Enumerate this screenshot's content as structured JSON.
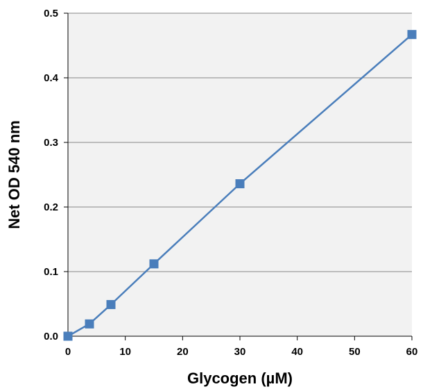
{
  "chart_data": {
    "type": "line",
    "title": "",
    "xlabel": "Glycogen (µM)",
    "ylabel": "Net OD 540 nm",
    "xlim": [
      0,
      60
    ],
    "ylim": [
      0,
      0.5
    ],
    "x_ticks": [
      0,
      10,
      20,
      30,
      40,
      50,
      60
    ],
    "y_ticks": [
      0,
      0.1,
      0.2,
      0.3,
      0.4,
      0.5
    ],
    "x_tick_labels": [
      "0",
      "10",
      "20",
      "30",
      "40",
      "50",
      "60"
    ],
    "y_tick_labels": [
      "0.0",
      "0.1",
      "0.2",
      "0.3",
      "0.4",
      "0.5"
    ],
    "grid": "horizontal",
    "legend": "none",
    "series": [
      {
        "x": [
          0,
          3.75,
          7.5,
          15,
          30,
          60
        ],
        "y": [
          0.0,
          0.019,
          0.049,
          0.112,
          0.236,
          0.467
        ],
        "marker": "square",
        "color": "#4a7ebb"
      }
    ],
    "colors": {
      "plot_background": "#f2f2f2",
      "gridline": "#868686",
      "axis": "#000000",
      "series": "#4a7ebb"
    }
  }
}
